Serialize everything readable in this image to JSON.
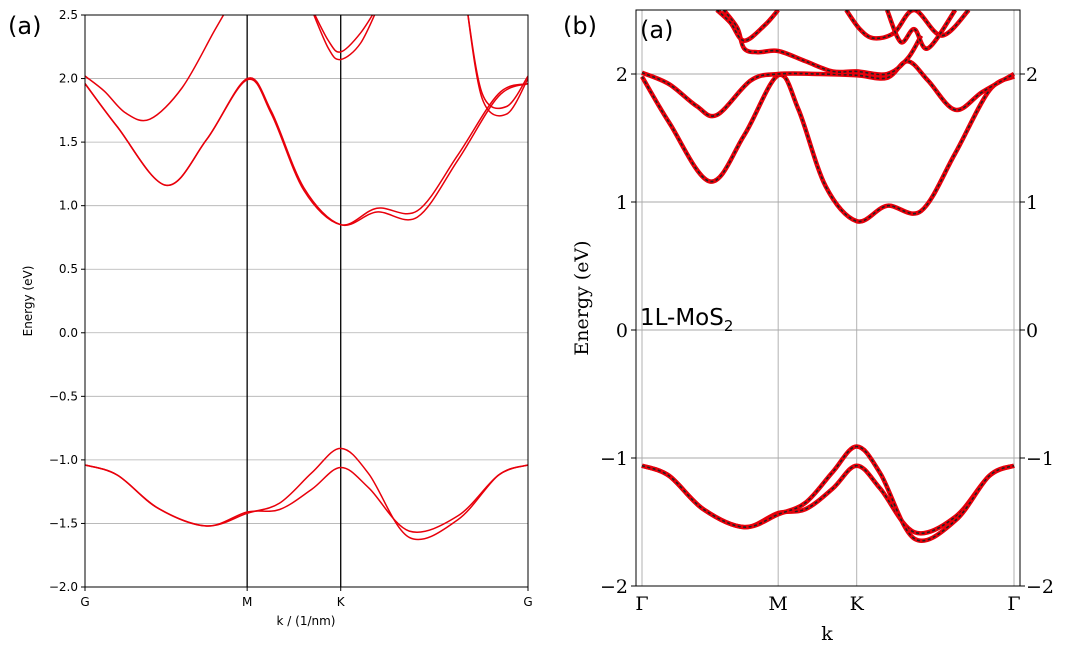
{
  "labels": {
    "panel_a": "(a)",
    "panel_b": "(b)",
    "panel_b_inner": "(a)",
    "annotation_main": "1L-MoS",
    "annotation_sub": "2"
  },
  "chart_data": [
    {
      "type": "line",
      "xlabel": "k / (1/nm)",
      "ylabel": "Energy (eV)",
      "ylim": [
        -2.0,
        2.5
      ],
      "ytick_labels": [
        "−2.0",
        "−1.5",
        "−1.0",
        "−0.5",
        "0.0",
        "0.5",
        "1.0",
        "1.5",
        "2.0",
        "2.5"
      ],
      "ytick_values": [
        -2.0,
        -1.5,
        -1.0,
        -0.5,
        0.0,
        0.5,
        1.0,
        1.5,
        2.0,
        2.5
      ],
      "xtick_labels": [
        "G",
        "M",
        "K",
        "G"
      ],
      "xtick_positions": [
        0,
        1,
        1.577,
        2.732
      ],
      "grid": "horizontal",
      "color": "#e8000b",
      "series": [
        {
          "x": [
            0,
            0.2,
            0.45,
            0.75,
            1.0,
            1.2,
            1.4,
            1.577,
            1.75,
            2.0,
            2.3,
            2.55,
            2.732
          ],
          "values": [
            -1.04,
            -1.12,
            -1.38,
            -1.52,
            -1.41,
            -1.39,
            -1.23,
            -1.06,
            -1.22,
            -1.56,
            -1.44,
            -1.12,
            -1.04
          ]
        },
        {
          "x": [
            0,
            0.2,
            0.45,
            0.75,
            1.0,
            1.2,
            1.4,
            1.577,
            1.75,
            2.0,
            2.3,
            2.55,
            2.732
          ],
          "values": [
            -1.04,
            -1.12,
            -1.38,
            -1.52,
            -1.42,
            -1.34,
            -1.1,
            -0.91,
            -1.11,
            -1.61,
            -1.47,
            -1.12,
            -1.04
          ]
        },
        {
          "x": [
            0,
            0.2,
            0.5,
            0.75,
            1.0,
            1.15,
            1.35,
            1.577,
            1.8,
            2.05,
            2.3,
            2.55,
            2.732
          ],
          "values": [
            1.96,
            1.62,
            1.16,
            1.52,
            1.99,
            1.72,
            1.12,
            0.85,
            0.98,
            0.96,
            1.4,
            1.88,
            1.96
          ]
        },
        {
          "x": [
            0,
            0.2,
            0.5,
            0.75,
            1.0,
            1.15,
            1.35,
            1.577,
            1.8,
            2.05,
            2.3,
            2.55,
            2.732
          ],
          "values": [
            1.96,
            1.62,
            1.16,
            1.52,
            2.0,
            1.74,
            1.14,
            0.85,
            0.95,
            0.91,
            1.36,
            1.86,
            1.96
          ]
        },
        {
          "x": [
            0,
            0.12,
            0.25,
            0.4,
            0.6,
            0.8,
            0.9
          ],
          "values": [
            2.02,
            1.9,
            1.73,
            1.68,
            1.93,
            2.38,
            2.6
          ]
        },
        {
          "x": [
            2.35,
            2.45,
            2.6,
            2.732
          ],
          "values": [
            2.6,
            1.88,
            1.78,
            2.02
          ]
        },
        {
          "x": [
            2.35,
            2.45,
            2.6,
            2.732
          ],
          "values": [
            2.6,
            1.84,
            1.72,
            2.0
          ]
        },
        {
          "x": [
            1.38,
            1.5,
            1.577,
            1.7,
            1.82
          ],
          "values": [
            2.6,
            2.3,
            2.21,
            2.36,
            2.6
          ]
        },
        {
          "x": [
            1.38,
            1.5,
            1.577,
            1.7,
            1.82
          ],
          "values": [
            2.6,
            2.24,
            2.15,
            2.28,
            2.6
          ]
        }
      ]
    },
    {
      "type": "line",
      "xlabel": "k",
      "ylabel": "Energy (eV)",
      "ylim": [
        -2,
        2.5
      ],
      "ytick_labels": [
        "−2",
        "−1",
        "0",
        "1",
        "2"
      ],
      "ytick_values": [
        -2,
        -1,
        0,
        1,
        2
      ],
      "xtick_labels": [
        "Γ",
        "M",
        "K",
        "Γ"
      ],
      "xtick_positions": [
        0,
        1,
        1.577,
        2.732
      ],
      "grid": "both",
      "color": "#e8000b",
      "overlay_color": "#222222",
      "series": [
        {
          "x": [
            0,
            0.2,
            0.45,
            0.75,
            1.0,
            1.2,
            1.4,
            1.577,
            1.75,
            2.0,
            2.3,
            2.55,
            2.732
          ],
          "values": [
            -1.06,
            -1.14,
            -1.4,
            -1.54,
            -1.43,
            -1.4,
            -1.24,
            -1.06,
            -1.24,
            -1.58,
            -1.46,
            -1.14,
            -1.06
          ]
        },
        {
          "x": [
            0,
            0.2,
            0.45,
            0.75,
            1.0,
            1.2,
            1.4,
            1.577,
            1.75,
            2.0,
            2.3,
            2.55,
            2.732
          ],
          "values": [
            -1.06,
            -1.14,
            -1.4,
            -1.54,
            -1.44,
            -1.35,
            -1.11,
            -0.91,
            -1.12,
            -1.63,
            -1.49,
            -1.14,
            -1.06
          ]
        },
        {
          "x": [
            0,
            0.2,
            0.5,
            0.75,
            1.0,
            1.15,
            1.35,
            1.577,
            1.8,
            2.05,
            2.3,
            2.55,
            2.732
          ],
          "values": [
            1.98,
            1.62,
            1.16,
            1.52,
            1.99,
            1.72,
            1.12,
            0.85,
            0.97,
            0.93,
            1.38,
            1.87,
            1.98
          ]
        },
        {
          "x": [
            0,
            0.2,
            0.4,
            0.55,
            0.8,
            1.0,
            1.3,
            1.577,
            1.8,
            1.95,
            2.1,
            2.3,
            2.5,
            2.732
          ],
          "values": [
            2.01,
            1.92,
            1.75,
            1.68,
            1.95,
            2.0,
            2.0,
            1.99,
            1.97,
            2.1,
            1.95,
            1.72,
            1.86,
            2.0
          ]
        },
        {
          "x": [
            0.6,
            0.7,
            0.75,
            0.85,
            1.0,
            1.2,
            1.4,
            1.577,
            1.8,
            1.95,
            2.05
          ],
          "values": [
            2.5,
            2.36,
            2.2,
            2.17,
            2.18,
            2.1,
            2.02,
            2.02,
            2.0,
            2.12,
            2.3
          ]
        },
        {
          "x": [
            0.55,
            0.65,
            0.75,
            0.9,
            1.0
          ],
          "values": [
            2.5,
            2.4,
            2.26,
            2.38,
            2.5
          ]
        },
        {
          "x": [
            1.5,
            1.6,
            1.7,
            1.85,
            2.0,
            2.2,
            2.4
          ],
          "values": [
            2.5,
            2.35,
            2.28,
            2.32,
            2.5,
            2.3,
            2.5
          ]
        },
        {
          "x": [
            1.8,
            1.9,
            2.0,
            2.1,
            2.3
          ],
          "values": [
            2.5,
            2.25,
            2.35,
            2.2,
            2.5
          ]
        }
      ]
    }
  ]
}
